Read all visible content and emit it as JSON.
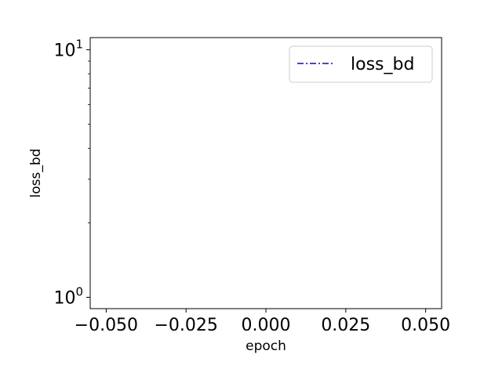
{
  "chart_data": {
    "type": "line",
    "title": "",
    "xlabel": "epoch",
    "ylabel": "loss_bd",
    "xlim": [
      -0.055,
      0.055
    ],
    "ylim": [
      0.9,
      11.2
    ],
    "y_scale": "log",
    "x_ticks": [
      -0.05,
      -0.025,
      0.0,
      0.025,
      0.05
    ],
    "x_tick_labels": [
      "−0.050",
      "−0.025",
      "0.000",
      "0.025",
      "0.050"
    ],
    "y_major_ticks": [
      1,
      10
    ],
    "y_major_tick_labels": [
      {
        "base": "10",
        "exp": "0"
      },
      {
        "base": "10",
        "exp": "1"
      }
    ],
    "y_minor_ticks": [
      2,
      3,
      4,
      5,
      6,
      7,
      8,
      9
    ],
    "grid": false,
    "legend": {
      "position": "top-right",
      "entries": [
        "loss_bd"
      ]
    },
    "series": [
      {
        "name": "loss_bd",
        "color": "#0000ff",
        "linestyle": "dash-dot",
        "x": [],
        "y": []
      }
    ]
  }
}
